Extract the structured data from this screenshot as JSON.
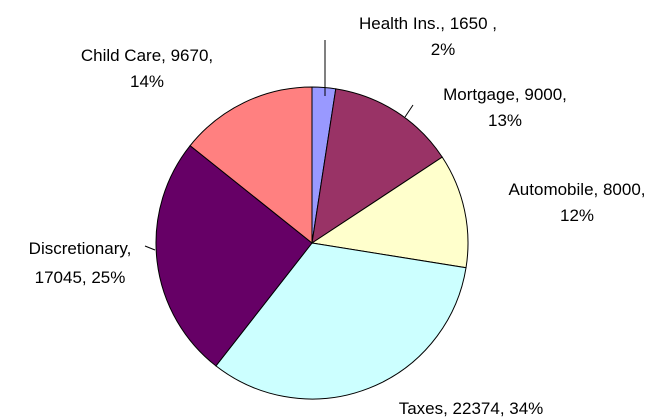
{
  "chart_data": {
    "type": "pie",
    "title": "",
    "slices": [
      {
        "label": "Health Ins.",
        "value": 1650,
        "percent": "2%",
        "color": "#9999ff",
        "line1": "Health Ins., 1650 ,",
        "line2": "2%"
      },
      {
        "label": "Mortgage",
        "value": 9000,
        "percent": "13%",
        "color": "#993366",
        "line1": "Mortgage, 9000,",
        "line2": "13%"
      },
      {
        "label": "Automobile",
        "value": 8000,
        "percent": "12%",
        "color": "#ffffcc",
        "line1": "Automobile, 8000,",
        "line2": "12%"
      },
      {
        "label": "Taxes",
        "value": 22374,
        "percent": "34%",
        "color": "#ccffff",
        "line1": "Taxes, 22374, 34%",
        "line2": ""
      },
      {
        "label": "Discretionary",
        "value": 17045,
        "percent": "25%",
        "color": "#660066",
        "line1": "Discretionary,",
        "line2": "17045, 25%"
      },
      {
        "label": "Child Care",
        "value": 9670,
        "percent": "14%",
        "color": "#ff8080",
        "line1": "Child Care, 9670,",
        "line2": "14%"
      }
    ],
    "start_angle_deg": 0,
    "direction": "clockwise",
    "legend": "none",
    "grid": false
  }
}
